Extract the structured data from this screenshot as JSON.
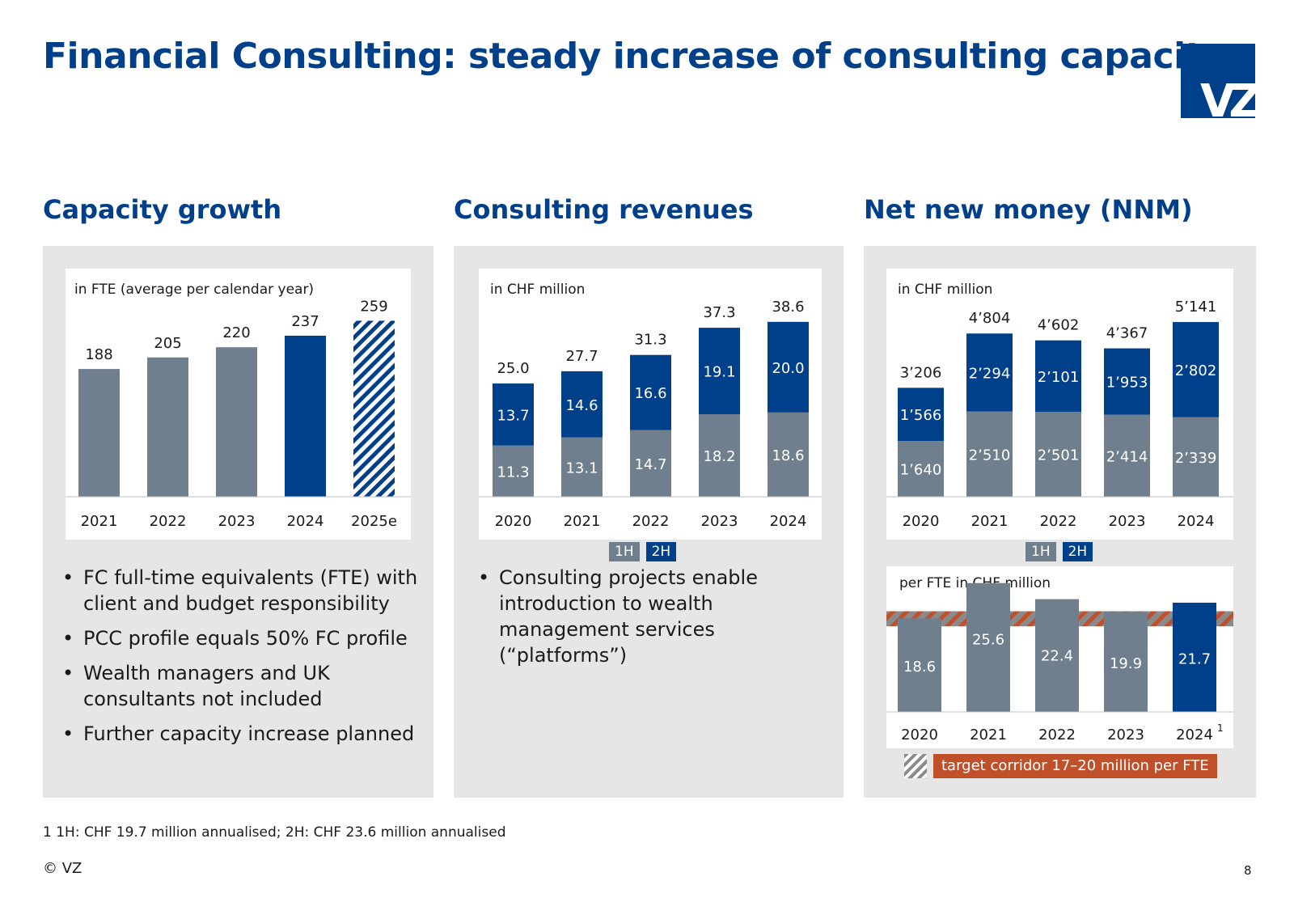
{
  "title": "Financial Consulting: steady increase of consulting capacity",
  "logo_text": "VZ",
  "colors": {
    "brand": "#003f8a",
    "grey": "#6f7f8e",
    "corridor": "#c0502a"
  },
  "capacity": {
    "heading": "Capacity growth",
    "bullets": [
      "FC full-time equivalents (FTE) with client and budget responsibility",
      "PCC profile equals 50% FC profile",
      "Wealth managers and UK consultants not included",
      "Further capacity increase planned"
    ]
  },
  "revenues": {
    "heading": "Consulting revenues",
    "bullets": [
      "Consulting projects enable introduction to wealth management services (“platforms”)"
    ],
    "legend": {
      "h1": "1H",
      "h2": "2H"
    }
  },
  "nnm": {
    "heading": "Net new money (NNM)",
    "legend": {
      "h1": "1H",
      "h2": "2H"
    },
    "corridor_label": "target corridor 17–20 million per FTE"
  },
  "chart_data": [
    {
      "id": "capacity",
      "type": "bar",
      "title": "in FTE (average per calendar year)",
      "categories": [
        "2021",
        "2022",
        "2023",
        "2024",
        "2025e"
      ],
      "values": [
        188,
        205,
        220,
        237,
        259
      ],
      "value_labels": [
        "188",
        "205",
        "220",
        "237",
        "259"
      ],
      "styles": [
        "grey",
        "grey",
        "grey",
        "blue",
        "hatched"
      ],
      "ylim": [
        0,
        300
      ]
    },
    {
      "id": "revenues",
      "type": "bar",
      "stacked": true,
      "title": "in CHF million",
      "categories": [
        "2020",
        "2021",
        "2022",
        "2023",
        "2024"
      ],
      "series": [
        {
          "name": "1H",
          "values": [
            11.3,
            13.1,
            14.7,
            18.2,
            18.6
          ],
          "labels": [
            "11.3",
            "13.1",
            "14.7",
            "18.2",
            "18.6"
          ]
        },
        {
          "name": "2H",
          "values": [
            13.7,
            14.6,
            16.6,
            19.1,
            20.0
          ],
          "labels": [
            "13.7",
            "14.6",
            "16.6",
            "19.1",
            "20.0"
          ]
        }
      ],
      "totals": [
        "25.0",
        "27.7",
        "31.3",
        "37.3",
        "38.6"
      ],
      "ylim": [
        0,
        45
      ]
    },
    {
      "id": "nnm",
      "type": "bar",
      "stacked": true,
      "title": "in CHF million",
      "categories": [
        "2020",
        "2021",
        "2022",
        "2023",
        "2024"
      ],
      "series": [
        {
          "name": "1H",
          "values": [
            1640,
            2510,
            2501,
            2414,
            2339
          ],
          "labels": [
            "1’640",
            "2’510",
            "2’501",
            "2’414",
            "2’339"
          ]
        },
        {
          "name": "2H",
          "values": [
            1566,
            2294,
            2101,
            1953,
            2802
          ],
          "labels": [
            "1’566",
            "2’294",
            "2’101",
            "1’953",
            "2’802"
          ]
        }
      ],
      "totals": [
        "3’206",
        "4’804",
        "4’602",
        "4’367",
        "5’141"
      ],
      "ylim": [
        0,
        6000
      ]
    },
    {
      "id": "nnm_per_fte",
      "type": "bar",
      "title": "per FTE in CHF million",
      "categories": [
        "2020",
        "2021",
        "2022",
        "2023",
        "2024"
      ],
      "category_superscripts": [
        "",
        "",
        "",
        "",
        "1"
      ],
      "values": [
        18.6,
        25.6,
        22.4,
        19.9,
        21.7
      ],
      "value_labels": [
        "18.6",
        "25.6",
        "22.4",
        "19.9",
        "21.7"
      ],
      "styles": [
        "grey",
        "grey",
        "grey",
        "grey",
        "blue"
      ],
      "corridor": [
        17,
        20
      ],
      "ylim": [
        0,
        27
      ]
    }
  ],
  "footnote": "1  1H: CHF 19.7 million annualised; 2H: CHF 23.6 million annualised",
  "copyright": "© VZ",
  "page_number": "8"
}
